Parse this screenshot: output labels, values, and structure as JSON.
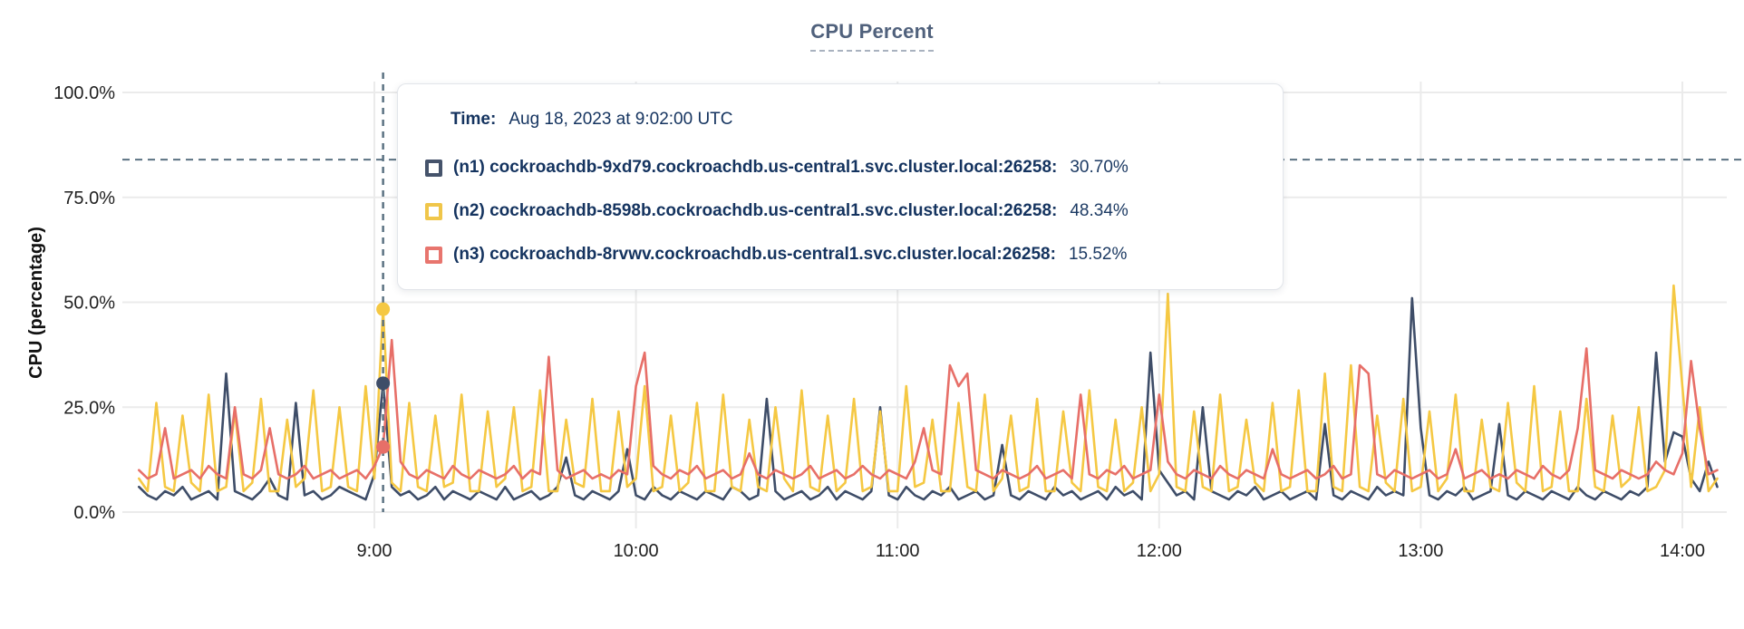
{
  "title": "CPU Percent",
  "tooltip": {
    "time_label": "Time:",
    "time_value": "Aug 18, 2023 at 9:02:00 UTC",
    "rows": [
      {
        "label": "(n1) cockroachdb-9xd79.cockroachdb.us-central1.svc.cluster.local:26258:",
        "value": "30.70%",
        "color": "#45536b"
      },
      {
        "label": "(n2) cockroachdb-8598b.cockroachdb.us-central1.svc.cluster.local:26258:",
        "value": "48.34%",
        "color": "#f0c64a"
      },
      {
        "label": "(n3) cockroachdb-8rvwv.cockroachdb.us-central1.svc.cluster.local:26258:",
        "value": "15.52%",
        "color": "#e8756e"
      }
    ]
  },
  "chart_data": {
    "type": "line",
    "title": "CPU Percent",
    "ylabel": "CPU (percentage)",
    "xlabel": "",
    "ylim": [
      0,
      100
    ],
    "grid": true,
    "y_ticks": [
      {
        "label": "100.0%",
        "value": 100
      },
      {
        "label": "75.0%",
        "value": 75
      },
      {
        "label": "50.0%",
        "value": 50
      },
      {
        "label": "25.0%",
        "value": 25
      },
      {
        "label": "0.0%",
        "value": 0
      }
    ],
    "x_ticks": [
      {
        "label": "9:00",
        "minutes": 540
      },
      {
        "label": "10:00",
        "minutes": 600
      },
      {
        "label": "11:00",
        "minutes": 660
      },
      {
        "label": "12:00",
        "minutes": 720
      },
      {
        "label": "13:00",
        "minutes": 780
      },
      {
        "label": "14:00",
        "minutes": 840
      }
    ],
    "x_start_minutes": 486,
    "x_step_minutes": 2,
    "threshold_percent": 84,
    "cursor": {
      "time_minutes": 542,
      "time_text": "Aug 18, 2023 at 9:02:00 UTC",
      "point_values": [
        30.7,
        48.34,
        15.52
      ]
    },
    "series": [
      {
        "name": "(n1) cockroachdb-9xd79.cockroachdb.us-central1.svc.cluster.local:26258",
        "color": "#3e4d68",
        "values": [
          6,
          4,
          3,
          5,
          4,
          6,
          3,
          4,
          5,
          3,
          33,
          5,
          4,
          3,
          5,
          8,
          4,
          3,
          26,
          4,
          5,
          3,
          4,
          6,
          5,
          4,
          3,
          9,
          30.7,
          6,
          4,
          5,
          3,
          4,
          6,
          3,
          5,
          4,
          3,
          5,
          4,
          3,
          6,
          3,
          4,
          5,
          3,
          4,
          6,
          13,
          4,
          3,
          5,
          4,
          3,
          5,
          15,
          4,
          3,
          6,
          4,
          3,
          5,
          4,
          3,
          5,
          4,
          3,
          6,
          5,
          3,
          4,
          27,
          5,
          3,
          4,
          5,
          3,
          4,
          6,
          3,
          5,
          4,
          3,
          5,
          25,
          4,
          3,
          6,
          4,
          3,
          5,
          4,
          6,
          3,
          4,
          5,
          3,
          4,
          16,
          4,
          3,
          5,
          4,
          3,
          6,
          4,
          5,
          3,
          4,
          5,
          3,
          6,
          4,
          5,
          3,
          38,
          10,
          7,
          4,
          5,
          3,
          25,
          5,
          4,
          3,
          5,
          4,
          6,
          3,
          4,
          5,
          3,
          4,
          5,
          3,
          21,
          4,
          3,
          5,
          4,
          3,
          6,
          4,
          5,
          4,
          51,
          20,
          4,
          3,
          5,
          4,
          6,
          3,
          4,
          5,
          21,
          4,
          3,
          5,
          4,
          3,
          5,
          4,
          3,
          6,
          4,
          3,
          5,
          4,
          3,
          5,
          4,
          6,
          38,
          12,
          19,
          18,
          8,
          5,
          12,
          6
        ]
      },
      {
        "name": "(n2) cockroachdb-8598b.cockroachdb.us-central1.svc.cluster.local:26258",
        "color": "#f5c843",
        "values": [
          8,
          5,
          26,
          6,
          5,
          23,
          7,
          5,
          28,
          5,
          6,
          24,
          5,
          7,
          27,
          5,
          5,
          22,
          6,
          8,
          29,
          5,
          6,
          25,
          6,
          5,
          30,
          8,
          48.34,
          7,
          5,
          26,
          6,
          5,
          23,
          6,
          7,
          28,
          5,
          5,
          24,
          6,
          8,
          25,
          5,
          6,
          29,
          5,
          5,
          22,
          7,
          6,
          27,
          5,
          5,
          24,
          6,
          8,
          30,
          5,
          6,
          23,
          5,
          7,
          26,
          5,
          5,
          28,
          6,
          5,
          22,
          6,
          5,
          25,
          8,
          5,
          29,
          6,
          5,
          23,
          5,
          7,
          27,
          5,
          6,
          24,
          5,
          5,
          30,
          6,
          7,
          22,
          5,
          5,
          26,
          6,
          5,
          28,
          5,
          8,
          23,
          5,
          6,
          27,
          5,
          5,
          24,
          7,
          5,
          29,
          6,
          5,
          22,
          5,
          7,
          25,
          5,
          9,
          52,
          6,
          5,
          24,
          6,
          5,
          28,
          5,
          6,
          22,
          7,
          5,
          26,
          5,
          6,
          29,
          5,
          5,
          33,
          6,
          5,
          35,
          6,
          5,
          23,
          7,
          5,
          27,
          5,
          6,
          24,
          5,
          8,
          28,
          5,
          5,
          22,
          6,
          5,
          26,
          7,
          5,
          30,
          5,
          6,
          24,
          5,
          5,
          27,
          6,
          5,
          23,
          6,
          8,
          25,
          5,
          6,
          10,
          54,
          30,
          6,
          25,
          5,
          8
        ]
      },
      {
        "name": "(n3) cockroachdb-8rvwv.cockroachdb.us-central1.svc.cluster.local:26258",
        "color": "#e76f68",
        "values": [
          10,
          8,
          9,
          20,
          8,
          9,
          10,
          8,
          11,
          9,
          8,
          25,
          9,
          8,
          10,
          20,
          9,
          8,
          9,
          11,
          8,
          9,
          10,
          8,
          9,
          10,
          8,
          11,
          15.52,
          41,
          12,
          9,
          8,
          10,
          9,
          8,
          11,
          9,
          8,
          10,
          9,
          8,
          9,
          11,
          8,
          10,
          9,
          37,
          10,
          8,
          9,
          10,
          8,
          9,
          8,
          10,
          9,
          30,
          38,
          11,
          9,
          8,
          10,
          9,
          11,
          8,
          9,
          10,
          8,
          9,
          14,
          9,
          8,
          10,
          9,
          8,
          9,
          11,
          8,
          9,
          10,
          8,
          9,
          11,
          9,
          8,
          10,
          9,
          8,
          12,
          20,
          10,
          9,
          35,
          30,
          33,
          10,
          9,
          8,
          10,
          9,
          8,
          9,
          11,
          8,
          9,
          10,
          8,
          28,
          9,
          8,
          10,
          9,
          11,
          8,
          9,
          10,
          28,
          12,
          9,
          8,
          10,
          9,
          8,
          11,
          9,
          8,
          10,
          9,
          8,
          15,
          9,
          8,
          9,
          10,
          8,
          9,
          11,
          8,
          9,
          35,
          33,
          9,
          8,
          10,
          9,
          8,
          9,
          10,
          8,
          9,
          15,
          8,
          9,
          10,
          8,
          9,
          8,
          10,
          9,
          8,
          11,
          9,
          8,
          10,
          20,
          39,
          10,
          9,
          8,
          10,
          9,
          8,
          9,
          12,
          10,
          9,
          14,
          36,
          20,
          9,
          10
        ]
      }
    ],
    "legend_position": "tooltip-overlay",
    "colors": {
      "gridline": "#ebebeb",
      "dashed_guides": "#5b7282",
      "title": "#50617c",
      "tooltip_text": "#14335f",
      "axis_text": "#1f1f1f"
    }
  }
}
